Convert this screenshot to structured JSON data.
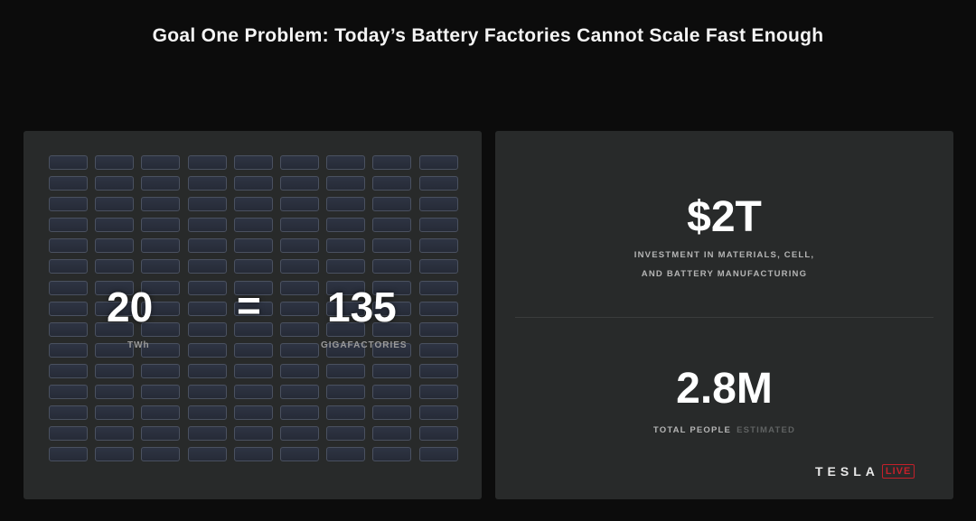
{
  "title": "Goal One Problem: Today’s Battery Factories Cannot Scale Fast Enough",
  "left_panel": {
    "grid": {
      "rows": 15,
      "cols": 9
    },
    "left_value": "20",
    "left_unit": "TWh",
    "equals": "=",
    "right_value": "135",
    "right_unit": "GIGAFACTORIES"
  },
  "right_panel": {
    "top_value": "$2T",
    "top_label_line1": "INVESTMENT IN MATERIALS, CELL,",
    "top_label_line2": "AND BATTERY MANUFACTURING",
    "bottom_value": "2.8M",
    "bottom_label": "TOTAL PEOPLE",
    "bottom_label_muted": "ESTIMATED"
  },
  "branding": {
    "logo_word": "TESLA",
    "logo_badge": "LIVE",
    "badge_color": "#c4202a"
  }
}
